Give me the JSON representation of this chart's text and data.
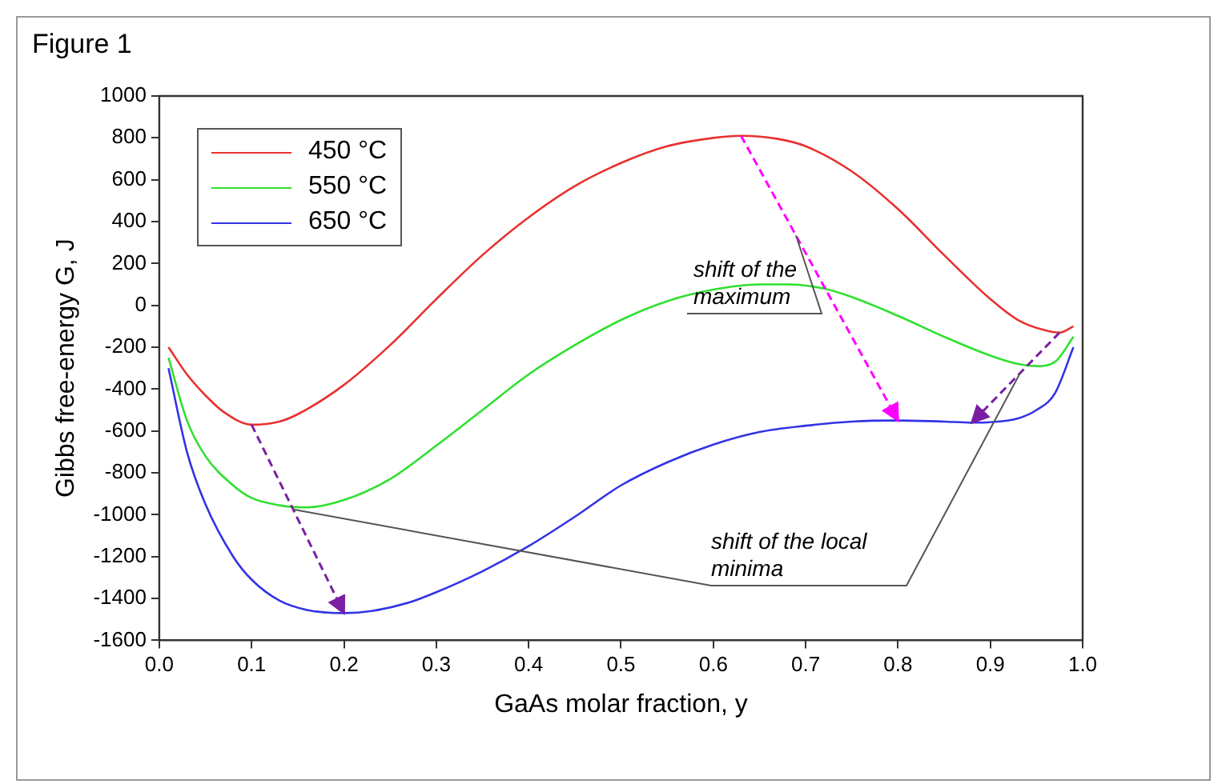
{
  "chart_data": {
    "type": "line",
    "title": "Figure 1",
    "xlabel": "GaAs molar fraction, y",
    "ylabel": "Gibbs free-energy G, J",
    "xlim": [
      0,
      1
    ],
    "ylim": [
      -1600,
      1000
    ],
    "xticks": [
      {
        "value": 0,
        "label": "0.0"
      },
      0.1,
      0.2,
      0.3,
      0.4,
      0.5,
      0.6,
      0.7,
      0.8,
      0.9,
      {
        "value": 1,
        "label": "1.0"
      }
    ],
    "yticks": [
      -1600,
      -1400,
      -1200,
      -1000,
      -800,
      -600,
      -400,
      -200,
      0,
      200,
      400,
      600,
      800,
      1000
    ],
    "grid": false,
    "legend": "top left",
    "marker": "none",
    "line_style": "solid",
    "annotations": [
      "shift of the maximum",
      "shift of the local minima"
    ],
    "series": [
      {
        "name": "450 °C",
        "color": "#e8312f",
        "x": [
          0.01,
          0.03,
          0.05,
          0.07,
          0.1,
          0.13,
          0.15,
          0.2,
          0.25,
          0.3,
          0.35,
          0.4,
          0.45,
          0.5,
          0.55,
          0.6,
          0.63,
          0.67,
          0.7,
          0.75,
          0.8,
          0.85,
          0.9,
          0.93,
          0.96,
          0.975,
          0.99
        ],
        "values": [
          -200,
          -330,
          -430,
          -510,
          -570,
          -555,
          -520,
          -380,
          -190,
          30,
          240,
          420,
          570,
          680,
          760,
          800,
          810,
          795,
          760,
          640,
          460,
          240,
          30,
          -70,
          -120,
          -130,
          -100
        ]
      },
      {
        "name": "550 °C",
        "color": "#2fe02f",
        "x": [
          0.01,
          0.03,
          0.05,
          0.08,
          0.1,
          0.13,
          0.16,
          0.2,
          0.25,
          0.3,
          0.35,
          0.4,
          0.45,
          0.5,
          0.55,
          0.6,
          0.65,
          0.68,
          0.72,
          0.75,
          0.8,
          0.85,
          0.9,
          0.93,
          0.95,
          0.97,
          0.99
        ],
        "values": [
          -250,
          -550,
          -720,
          -860,
          -920,
          -955,
          -965,
          -930,
          -830,
          -670,
          -500,
          -330,
          -190,
          -70,
          20,
          75,
          100,
          100,
          80,
          40,
          -50,
          -150,
          -240,
          -280,
          -290,
          -270,
          -150
        ]
      },
      {
        "name": "650 °C",
        "color": "#3333e6",
        "x": [
          0.01,
          0.03,
          0.05,
          0.08,
          0.1,
          0.13,
          0.16,
          0.2,
          0.23,
          0.27,
          0.3,
          0.35,
          0.4,
          0.45,
          0.5,
          0.55,
          0.6,
          0.65,
          0.7,
          0.75,
          0.8,
          0.85,
          0.88,
          0.9,
          0.93,
          0.95,
          0.97,
          0.99
        ],
        "values": [
          -300,
          -700,
          -950,
          -1200,
          -1310,
          -1410,
          -1455,
          -1470,
          -1460,
          -1420,
          -1370,
          -1270,
          -1150,
          -1010,
          -860,
          -750,
          -665,
          -605,
          -575,
          -555,
          -550,
          -555,
          -560,
          -558,
          -540,
          -500,
          -420,
          -200
        ]
      }
    ]
  }
}
